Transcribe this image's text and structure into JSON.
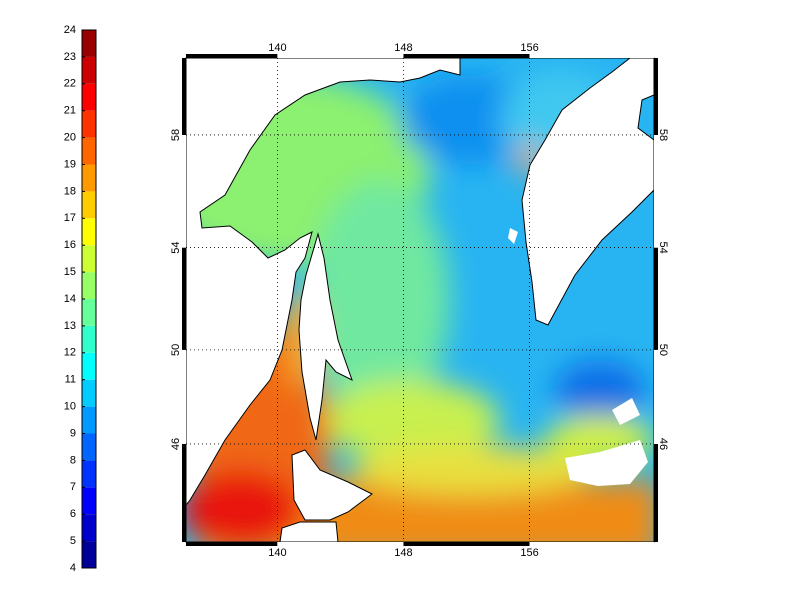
{
  "colorbar": {
    "lim": [
      4,
      24
    ],
    "ticks": [
      4,
      5,
      6,
      7,
      8,
      9,
      10,
      11,
      12,
      13,
      14,
      15,
      16,
      17,
      18,
      19,
      20,
      21,
      22,
      23,
      24
    ]
  },
  "map": {
    "xlim": [
      134.2,
      163.9
    ],
    "ylim": [
      41.5,
      60.5
    ],
    "xticks": [
      140,
      148,
      156
    ],
    "yticks": [
      46,
      50,
      54,
      58
    ],
    "grid": true
  }
}
